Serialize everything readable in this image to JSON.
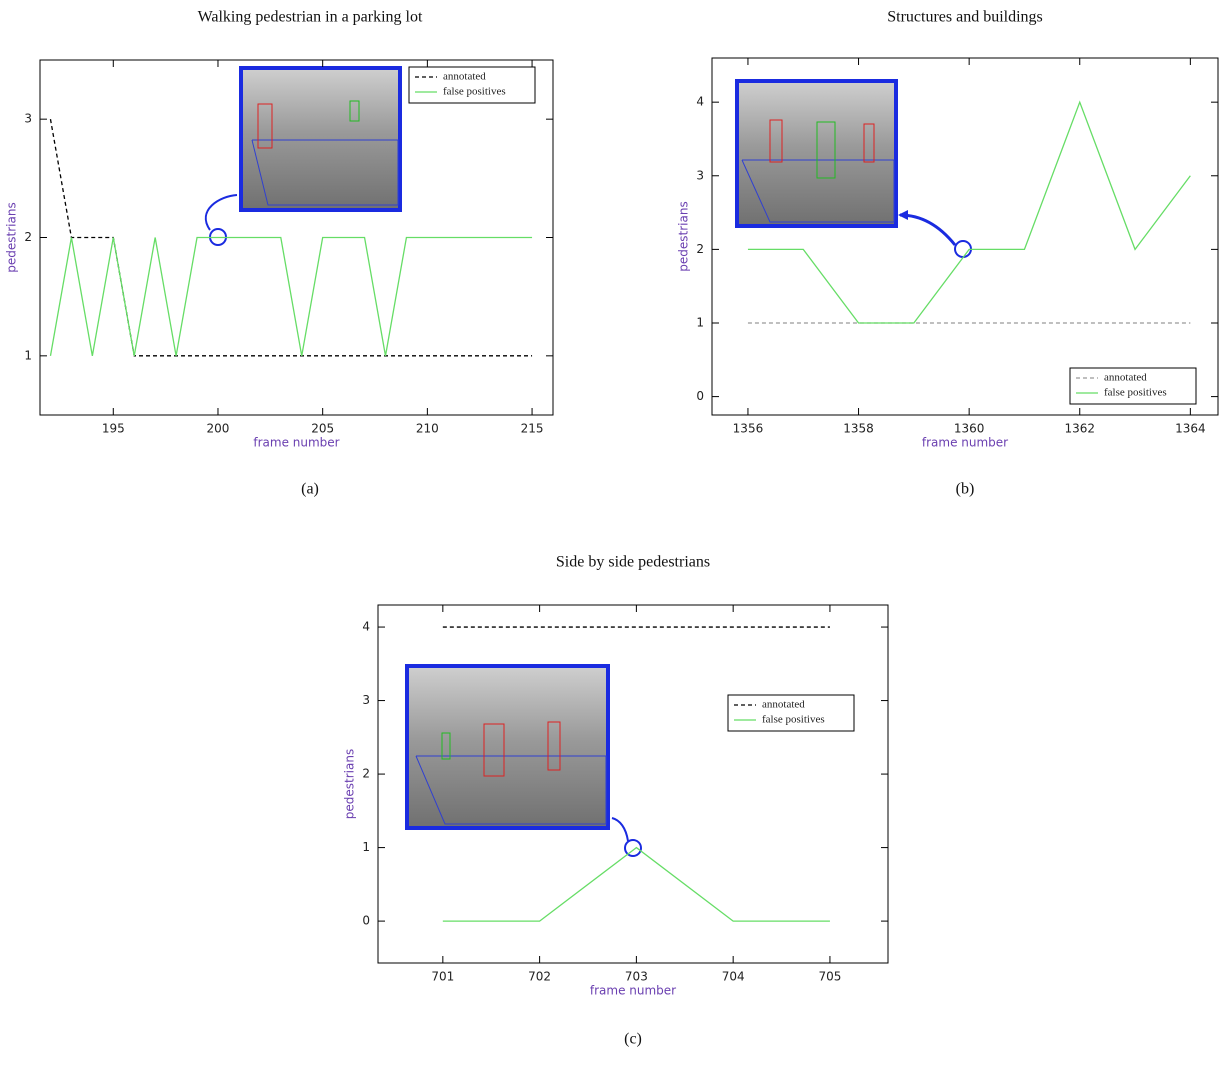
{
  "chart_data": [
    {
      "type": "line",
      "title": "Walking pedestrian in a parking lot",
      "caption": "(a)",
      "xlabel": "frame number",
      "ylabel": "pedestrians",
      "x": [
        192,
        193,
        194,
        195,
        196,
        197,
        198,
        199,
        200,
        201,
        202,
        203,
        204,
        205,
        206,
        207,
        208,
        209,
        210,
        211,
        212,
        213,
        214,
        215
      ],
      "series": [
        {
          "name": "annotated",
          "color": "#000000",
          "dashed": true,
          "values": [
            3,
            2,
            2,
            2,
            1,
            1,
            1,
            1,
            1,
            1,
            1,
            1,
            1,
            1,
            1,
            1,
            1,
            1,
            1,
            1,
            1,
            1,
            1,
            1
          ]
        },
        {
          "name": "false positives",
          "color": "#66dd66",
          "dashed": false,
          "values": [
            1,
            2,
            1,
            2,
            1,
            2,
            1,
            2,
            2,
            2,
            2,
            2,
            1,
            2,
            2,
            2,
            1,
            2,
            2,
            2,
            2,
            2,
            2,
            2
          ]
        }
      ],
      "xlim": [
        191.5,
        216
      ],
      "ylim": [
        0.5,
        3.5
      ],
      "xticks": [
        195,
        200,
        205,
        210,
        215
      ],
      "yticks": [
        1,
        2,
        3
      ],
      "legend": "top-right"
    },
    {
      "type": "line",
      "title": "Structures and buildings",
      "caption": "(b)",
      "xlabel": "frame number",
      "ylabel": "pedestrians",
      "x": [
        1356,
        1357,
        1358,
        1359,
        1360,
        1361,
        1362,
        1363,
        1364
      ],
      "series": [
        {
          "name": "annotated",
          "color": "#999999",
          "dashed": true,
          "values": [
            1,
            1,
            1,
            1,
            1,
            1,
            1,
            1,
            1
          ]
        },
        {
          "name": "false positives",
          "color": "#66dd66",
          "dashed": false,
          "values": [
            2,
            2,
            1,
            1,
            2,
            2,
            4,
            2,
            3
          ]
        }
      ],
      "xlim": [
        1355.35,
        1364.5
      ],
      "ylim": [
        -0.25,
        4.6
      ],
      "xticks": [
        1356,
        1358,
        1360,
        1362,
        1364
      ],
      "yticks": [
        0,
        1,
        2,
        3,
        4
      ],
      "legend": "bottom-right"
    },
    {
      "type": "line",
      "title": "Side by side pedestrians",
      "caption": "(c)",
      "xlabel": "frame number",
      "ylabel": "pedestrians",
      "x": [
        701,
        702,
        703,
        704,
        705
      ],
      "series": [
        {
          "name": "annotated",
          "color": "#000000",
          "dashed": true,
          "values": [
            4,
            4,
            4,
            4,
            4
          ]
        },
        {
          "name": "false positives",
          "color": "#66dd66",
          "dashed": false,
          "values": [
            0,
            0,
            1,
            0,
            0
          ]
        }
      ],
      "xlim": [
        700.33,
        705.6
      ],
      "ylim": [
        -0.57,
        4.3
      ],
      "xticks": [
        701,
        702,
        703,
        704,
        705
      ],
      "yticks": [
        0,
        1,
        2,
        3,
        4
      ],
      "legend": "center-right"
    }
  ]
}
